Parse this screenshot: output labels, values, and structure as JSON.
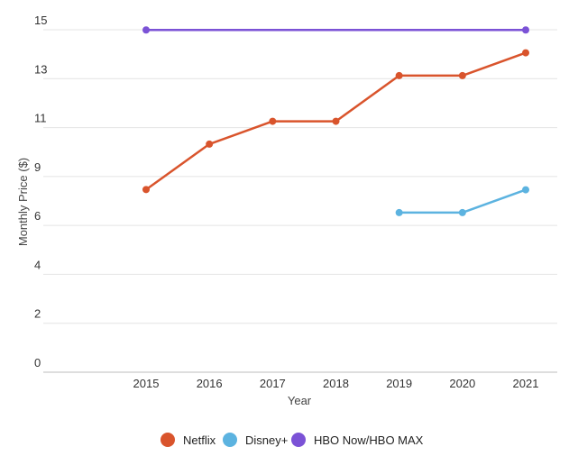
{
  "chart_data": {
    "type": "line",
    "title": "",
    "xlabel": "Year",
    "ylabel": "Monthly Price ($)",
    "x": [
      2015,
      2016,
      2017,
      2018,
      2019,
      2020,
      2021
    ],
    "x_tick_labels": [
      "2015",
      "2016",
      "2017",
      "2018",
      "2019",
      "2020",
      "2021"
    ],
    "y_tick_labels": [
      "0",
      "2",
      "4",
      "6",
      "9",
      "11",
      "13",
      "15"
    ],
    "ylim": [
      0,
      15
    ],
    "grid": true,
    "legend_position": "bottom",
    "series": [
      {
        "name": "Netflix",
        "color": "#d9542c",
        "values": [
          8.0,
          9.99,
          10.99,
          10.99,
          12.99,
          12.99,
          13.99
        ]
      },
      {
        "name": "Disney+",
        "color": "#5cb3e0",
        "values": [
          null,
          null,
          null,
          null,
          6.99,
          6.99,
          7.99
        ]
      },
      {
        "name": "HBO Now/HBO MAX",
        "color": "#7b52d6",
        "values": [
          14.99,
          null,
          null,
          null,
          null,
          null,
          14.99
        ]
      }
    ]
  }
}
